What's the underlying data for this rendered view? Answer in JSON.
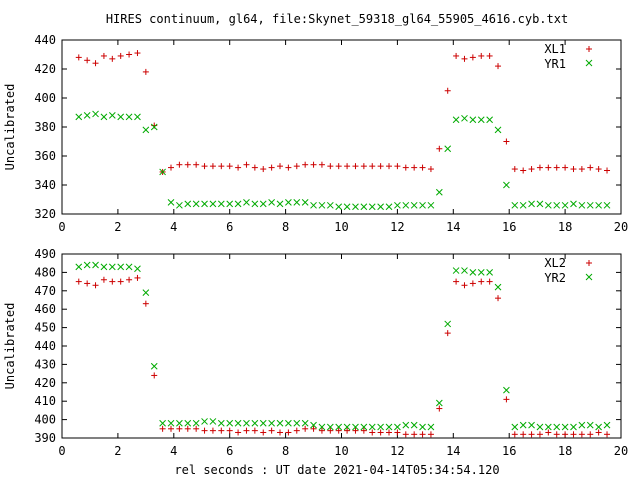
{
  "chart_data": [
    {
      "type": "scatter",
      "title": "HIRES continuum, gl64, file:Skynet_59318_gl64_55905_4616.cyb.txt",
      "xlabel": "",
      "ylabel": "Uncalibrated",
      "xlim": [
        0,
        20
      ],
      "ylim": [
        320,
        440
      ],
      "xticks": [
        "0",
        "2",
        "4",
        "6",
        "8",
        "10",
        "12",
        "14",
        "16",
        "18",
        "20"
      ],
      "yticks": [
        "320",
        "340",
        "360",
        "380",
        "400",
        "420",
        "440"
      ],
      "grid": false,
      "legend": "top-right",
      "x": [
        0.6,
        0.9,
        1.2,
        1.5,
        1.8,
        2.1,
        2.4,
        2.7,
        3.0,
        3.3,
        3.6,
        3.9,
        4.2,
        4.5,
        4.8,
        5.1,
        5.4,
        5.7,
        6.0,
        6.3,
        6.6,
        6.9,
        7.2,
        7.5,
        7.8,
        8.1,
        8.4,
        8.7,
        9.0,
        9.3,
        9.6,
        9.9,
        10.2,
        10.5,
        10.8,
        11.1,
        11.4,
        11.7,
        12.0,
        12.3,
        12.6,
        12.9,
        13.2,
        13.5,
        13.8,
        14.1,
        14.4,
        14.7,
        15.0,
        15.3,
        15.6,
        15.9,
        16.2,
        16.5,
        16.8,
        17.1,
        17.4,
        17.7,
        18.0,
        18.3,
        18.6,
        18.9,
        19.2,
        19.5
      ],
      "series": [
        {
          "name": "XL1",
          "color": "#cc0000",
          "marker": "plus",
          "values": [
            428,
            426,
            424,
            429,
            427,
            429,
            430,
            431,
            418,
            381,
            349,
            352,
            354,
            354,
            354,
            353,
            353,
            353,
            353,
            352,
            354,
            352,
            351,
            352,
            353,
            352,
            353,
            354,
            354,
            354,
            353,
            353,
            353,
            353,
            353,
            353,
            353,
            353,
            353,
            352,
            352,
            352,
            351,
            365,
            405,
            429,
            427,
            428,
            429,
            429,
            422,
            370,
            351,
            350,
            351,
            352,
            352,
            352,
            352,
            351,
            351,
            352,
            351,
            350
          ]
        },
        {
          "name": "YR1",
          "color": "#00aa00",
          "marker": "cross",
          "values": [
            387,
            388,
            389,
            387,
            388,
            387,
            387,
            387,
            378,
            380,
            349,
            328,
            326,
            327,
            327,
            327,
            327,
            327,
            327,
            327,
            328,
            327,
            327,
            328,
            327,
            328,
            328,
            328,
            326,
            326,
            326,
            325,
            325,
            325,
            325,
            325,
            325,
            325,
            326,
            326,
            326,
            326,
            326,
            335,
            365,
            385,
            386,
            385,
            385,
            385,
            378,
            340,
            326,
            326,
            327,
            327,
            326,
            326,
            326,
            327,
            326,
            326,
            326,
            326
          ]
        }
      ]
    },
    {
      "type": "scatter",
      "title": "",
      "xlabel": "rel seconds : UT date 2021-04-14T05:34:54.120",
      "ylabel": "Uncalibrated",
      "xlim": [
        0,
        20
      ],
      "ylim": [
        390,
        490
      ],
      "xticks": [
        "0",
        "2",
        "4",
        "6",
        "8",
        "10",
        "12",
        "14",
        "16",
        "18",
        "20"
      ],
      "yticks": [
        "390",
        "400",
        "410",
        "420",
        "430",
        "440",
        "450",
        "460",
        "470",
        "480",
        "490"
      ],
      "grid": false,
      "legend": "top-right",
      "x": [
        0.6,
        0.9,
        1.2,
        1.5,
        1.8,
        2.1,
        2.4,
        2.7,
        3.0,
        3.3,
        3.6,
        3.9,
        4.2,
        4.5,
        4.8,
        5.1,
        5.4,
        5.7,
        6.0,
        6.3,
        6.6,
        6.9,
        7.2,
        7.5,
        7.8,
        8.1,
        8.4,
        8.7,
        9.0,
        9.3,
        9.6,
        9.9,
        10.2,
        10.5,
        10.8,
        11.1,
        11.4,
        11.7,
        12.0,
        12.3,
        12.6,
        12.9,
        13.2,
        13.5,
        13.8,
        14.1,
        14.4,
        14.7,
        15.0,
        15.3,
        15.6,
        15.9,
        16.2,
        16.5,
        16.8,
        17.1,
        17.4,
        17.7,
        18.0,
        18.3,
        18.6,
        18.9,
        19.2,
        19.5
      ],
      "series": [
        {
          "name": "XL2",
          "color": "#cc0000",
          "marker": "plus",
          "values": [
            475,
            474,
            473,
            476,
            475,
            475,
            476,
            477,
            463,
            424,
            395,
            395,
            395,
            395,
            395,
            394,
            394,
            394,
            394,
            393,
            394,
            394,
            393,
            394,
            393,
            393,
            394,
            395,
            395,
            394,
            394,
            394,
            394,
            394,
            394,
            393,
            393,
            393,
            393,
            392,
            392,
            392,
            392,
            406,
            447,
            475,
            473,
            474,
            475,
            475,
            466,
            411,
            392,
            392,
            392,
            392,
            393,
            392,
            392,
            392,
            392,
            392,
            393,
            392
          ]
        },
        {
          "name": "YR2",
          "color": "#00aa00",
          "marker": "cross",
          "values": [
            483,
            484,
            484,
            483,
            483,
            483,
            483,
            482,
            469,
            429,
            398,
            398,
            398,
            398,
            398,
            399,
            399,
            398,
            398,
            398,
            398,
            398,
            398,
            398,
            398,
            398,
            398,
            398,
            397,
            396,
            396,
            396,
            396,
            396,
            396,
            396,
            396,
            396,
            396,
            397,
            397,
            396,
            396,
            409,
            452,
            481,
            481,
            480,
            480,
            480,
            472,
            416,
            396,
            397,
            397,
            396,
            396,
            396,
            396,
            396,
            397,
            397,
            396,
            397
          ]
        }
      ]
    }
  ]
}
